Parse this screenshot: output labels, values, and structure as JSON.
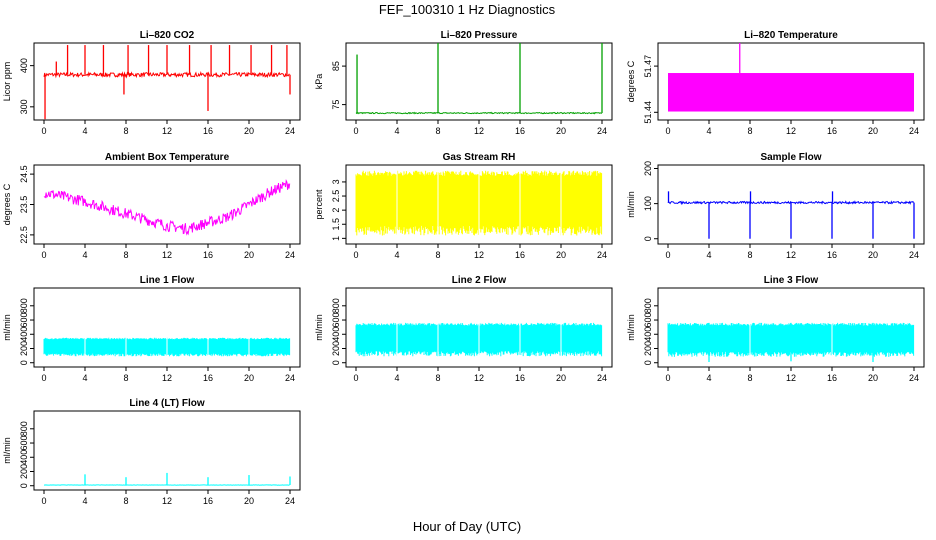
{
  "figure": {
    "title": "FEF_100310  1 Hz Diagnostics",
    "xlabel": "Hour of Day (UTC)"
  },
  "chart_data": [
    {
      "type": "line",
      "title": "Li–820 CO2",
      "ylabel": "Licor ppm",
      "color": "#ff0000",
      "xlim": [
        0,
        24
      ],
      "xticks": [
        0,
        4,
        8,
        12,
        16,
        20,
        24
      ],
      "ylim": [
        268,
        455
      ],
      "yticks": [
        300,
        400
      ],
      "baseline": 378,
      "noise": 5,
      "band": null,
      "spikes": [
        {
          "x": 0.1,
          "y": 270
        },
        {
          "x": 1.2,
          "y": 410
        },
        {
          "x": 2.3,
          "y": 450
        },
        {
          "x": 4.0,
          "y": 450
        },
        {
          "x": 5.8,
          "y": 450
        },
        {
          "x": 7.8,
          "y": 330
        },
        {
          "x": 8.2,
          "y": 450
        },
        {
          "x": 10.2,
          "y": 450
        },
        {
          "x": 12.0,
          "y": 450
        },
        {
          "x": 14.2,
          "y": 450
        },
        {
          "x": 16.0,
          "y": 290
        },
        {
          "x": 16.3,
          "y": 450
        },
        {
          "x": 18.1,
          "y": 450
        },
        {
          "x": 20.2,
          "y": 450
        },
        {
          "x": 22.2,
          "y": 450
        },
        {
          "x": 23.7,
          "y": 450
        },
        {
          "x": 24.0,
          "y": 330
        }
      ],
      "trend": null
    },
    {
      "type": "line",
      "title": "Li–820 Pressure",
      "ylabel": "kPa",
      "color": "#00a000",
      "xlim": [
        0,
        24
      ],
      "xticks": [
        0,
        4,
        8,
        12,
        16,
        20,
        24
      ],
      "ylim": [
        71,
        91
      ],
      "yticks": [
        75,
        85
      ],
      "baseline": 72.8,
      "noise": 0.15,
      "band": null,
      "spikes": [
        {
          "x": 0.1,
          "y": 88
        },
        {
          "x": 8.0,
          "y": 91
        },
        {
          "x": 16.0,
          "y": 91
        },
        {
          "x": 24.0,
          "y": 91
        }
      ],
      "trend": null
    },
    {
      "type": "area",
      "title": "Li–820 Temperature",
      "ylabel": "degrees C",
      "color": "#ff00ff",
      "xlim": [
        0,
        24
      ],
      "xticks": [
        0,
        4,
        8,
        12,
        16,
        20,
        24
      ],
      "ylim": [
        51.435,
        51.485
      ],
      "yticks": [
        51.44,
        51.47
      ],
      "baseline": null,
      "noise": 0,
      "band": [
        51.4405,
        51.4655
      ],
      "spikes": [
        {
          "x": 7.0,
          "y": 51.485
        }
      ],
      "trend": null
    },
    {
      "type": "line",
      "title": "Ambient Box Temperature",
      "ylabel": "degrees C",
      "color": "#ff00ff",
      "xlim": [
        0,
        24
      ],
      "xticks": [
        0,
        4,
        8,
        12,
        16,
        20,
        24
      ],
      "ylim": [
        22.2,
        24.8
      ],
      "yticks": [
        22.5,
        23.5,
        24.5
      ],
      "baseline": null,
      "noise": 0.18,
      "band": null,
      "spikes": [],
      "trend": {
        "x": [
          0,
          4,
          8,
          12,
          14,
          18,
          22,
          24
        ],
        "y": [
          23.9,
          23.6,
          23.2,
          22.8,
          22.7,
          23.1,
          23.9,
          24.2
        ]
      }
    },
    {
      "type": "line",
      "title": "Gas Stream RH",
      "ylabel": "percent",
      "color": "#ffff00",
      "xlim": [
        0,
        24
      ],
      "xticks": [
        0,
        4,
        8,
        12,
        16,
        20,
        24
      ],
      "ylim": [
        0.8,
        3.6
      ],
      "yticks": [
        1.0,
        1.5,
        2.0,
        2.5,
        3.0
      ],
      "baseline": null,
      "noise": 0,
      "band": [
        1.1,
        3.4
      ],
      "spikes": [],
      "trend": null
    },
    {
      "type": "line",
      "title": "Sample Flow",
      "ylabel": "ml/min",
      "color": "#0000ff",
      "xlim": [
        0,
        24
      ],
      "xticks": [
        0,
        4,
        8,
        12,
        16,
        20,
        24
      ],
      "ylim": [
        -15,
        210
      ],
      "yticks": [
        0,
        100,
        200
      ],
      "baseline": 103,
      "noise": 3,
      "band": null,
      "spikes": [
        {
          "x": 0.05,
          "y": 135
        },
        {
          "x": 4.0,
          "y": 0
        },
        {
          "x": 8.0,
          "y": 0
        },
        {
          "x": 8.05,
          "y": 135
        },
        {
          "x": 12.0,
          "y": 0
        },
        {
          "x": 16.0,
          "y": 0
        },
        {
          "x": 16.05,
          "y": 135
        },
        {
          "x": 20.0,
          "y": 0
        },
        {
          "x": 24.0,
          "y": 0
        }
      ],
      "trend": null
    },
    {
      "type": "line",
      "title": "Line 1 Flow",
      "ylabel": "ml/min",
      "color": "#00ffff",
      "xlim": [
        0,
        24
      ],
      "xticks": [
        0,
        4,
        8,
        12,
        16,
        20,
        24
      ],
      "ylim": [
        -60,
        1050
      ],
      "yticks": [
        0,
        200,
        400,
        600,
        800
      ],
      "baseline": null,
      "noise": 0,
      "band": [
        90,
        350
      ],
      "spikes": [],
      "trend": null
    },
    {
      "type": "line",
      "title": "Line 2 Flow",
      "ylabel": "ml/min",
      "color": "#00ffff",
      "xlim": [
        0,
        24
      ],
      "xticks": [
        0,
        4,
        8,
        12,
        16,
        20,
        24
      ],
      "ylim": [
        -60,
        1050
      ],
      "yticks": [
        0,
        200,
        400,
        600,
        800
      ],
      "baseline": null,
      "noise": 0,
      "band": [
        90,
        560
      ],
      "spikes": [],
      "trend": null
    },
    {
      "type": "line",
      "title": "Line 3 Flow",
      "ylabel": "ml/min",
      "color": "#00ffff",
      "xlim": [
        0,
        24
      ],
      "xticks": [
        0,
        4,
        8,
        12,
        16,
        20,
        24
      ],
      "ylim": [
        -60,
        1050
      ],
      "yticks": [
        0,
        200,
        400,
        600,
        800
      ],
      "baseline": null,
      "noise": 0,
      "band": [
        80,
        560
      ],
      "spikes": [
        {
          "x": 4.0,
          "y": 10
        },
        {
          "x": 12.0,
          "y": 20
        },
        {
          "x": 20.0,
          "y": 10
        }
      ],
      "trend": null
    },
    {
      "type": "line",
      "title": "Line 4 (LT) Flow",
      "ylabel": "ml/min",
      "color": "#00ffff",
      "xlim": [
        0,
        24
      ],
      "xticks": [
        0,
        4,
        8,
        12,
        16,
        20,
        24
      ],
      "ylim": [
        -60,
        1050
      ],
      "yticks": [
        0,
        200,
        400,
        600,
        800
      ],
      "baseline": 10,
      "noise": 2,
      "band": null,
      "spikes": [
        {
          "x": 4.0,
          "y": 160
        },
        {
          "x": 8.0,
          "y": 120
        },
        {
          "x": 12.0,
          "y": 180
        },
        {
          "x": 16.0,
          "y": 120
        },
        {
          "x": 20.0,
          "y": 150
        },
        {
          "x": 24.0,
          "y": 130
        }
      ],
      "trend": null
    }
  ]
}
